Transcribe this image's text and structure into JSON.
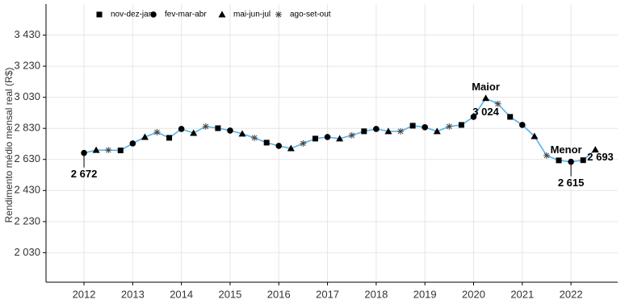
{
  "chart_data": {
    "type": "line",
    "y_label": "Rendimento médio mensal real (R$)",
    "line_color": "#56B4E9",
    "marker_color": "#000000",
    "grid": true,
    "legend": "top",
    "xlim": [
      2011.22,
      2022.96
    ],
    "xticks": [
      2012,
      2013,
      2014,
      2015,
      2016,
      2017,
      2018,
      2019,
      2020,
      2021,
      2022
    ],
    "ylim": [
      1840,
      3630
    ],
    "yticks": [
      {
        "value": 2030,
        "label": "2 030"
      },
      {
        "value": 2230,
        "label": "2 230"
      },
      {
        "value": 2430,
        "label": "2 430"
      },
      {
        "value": 2630,
        "label": "2 630"
      },
      {
        "value": 2830,
        "label": "2 830"
      },
      {
        "value": 3030,
        "label": "3 030"
      },
      {
        "value": 3230,
        "label": "3 230"
      },
      {
        "value": 3430,
        "label": "3 430"
      }
    ],
    "annotations": [
      "Maior",
      "Menor"
    ],
    "series": [
      {
        "name": "nov-dez-jan",
        "marker": "square",
        "x": [
          2012.75,
          2013.75,
          2014.75,
          2015.75,
          2016.75,
          2017.75,
          2018.75,
          2019.75,
          2020.75,
          2021.75,
          2022.25
        ],
        "values": [
          2688,
          2769,
          2831,
          2738,
          2764,
          2811,
          2847,
          2852,
          2904,
          2624,
          2625
        ]
      },
      {
        "name": "fev-mar-abr",
        "marker": "circle",
        "x": [
          2012,
          2013,
          2014,
          2015,
          2016,
          2017,
          2018,
          2019,
          2020,
          2021,
          2022
        ],
        "values": [
          2672,
          2733,
          2826,
          2816,
          2717,
          2774,
          2826,
          2837,
          2904,
          2852,
          2615
        ],
        "value_labels": [
          "2 672",
          null,
          null,
          null,
          null,
          null,
          null,
          null,
          null,
          null,
          "2 615"
        ]
      },
      {
        "name": "mai-jun-jul",
        "marker": "triangle",
        "x": [
          2012.25,
          2013.25,
          2014.25,
          2015.25,
          2016.25,
          2017.25,
          2018.25,
          2019.25,
          2020.25,
          2021.25,
          2022.5
        ],
        "values": [
          2690,
          2774,
          2800,
          2795,
          2701,
          2764,
          2811,
          2811,
          3024,
          2779,
          2693
        ],
        "value_labels": [
          null,
          null,
          null,
          null,
          null,
          null,
          null,
          null,
          "3 024",
          null,
          "2 693"
        ]
      },
      {
        "name": "ago-set-out",
        "marker": "asterisk",
        "x": [
          2012.5,
          2013.5,
          2014.5,
          2015.5,
          2016.5,
          2017.5,
          2018.5,
          2019.5,
          2020.5,
          2021.5
        ],
        "values": [
          2690,
          2805,
          2842,
          2769,
          2733,
          2785,
          2811,
          2842,
          2988,
          2655
        ]
      }
    ]
  }
}
